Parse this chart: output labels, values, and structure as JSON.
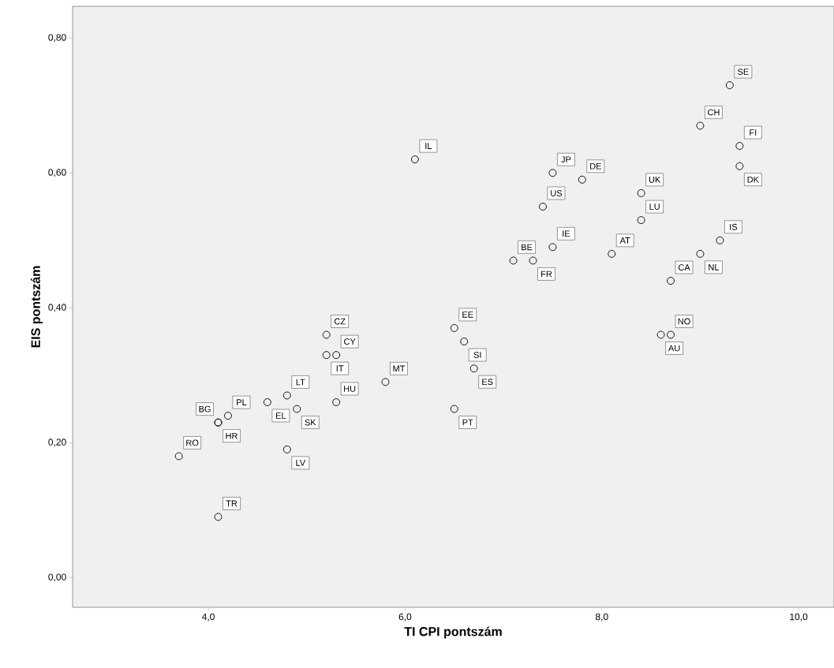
{
  "chart_data": {
    "type": "scatter",
    "xlabel": "TI CPI pontszám",
    "ylabel": "EIS pontszám",
    "x": [
      9.3,
      9.0,
      9.4,
      9.4,
      6.1,
      7.5,
      7.8,
      7.4,
      8.4,
      8.4,
      9.2,
      7.5,
      9.0,
      8.1,
      7.1,
      7.3,
      8.7,
      8.7,
      8.6,
      5.2,
      6.5,
      6.6,
      5.3,
      5.2,
      6.7,
      5.8,
      4.8,
      4.6,
      5.3,
      4.9,
      6.5,
      4.2,
      4.1,
      4.1,
      4.8,
      3.7,
      4.1
    ],
    "values": [
      0.73,
      0.67,
      0.64,
      0.61,
      0.62,
      0.6,
      0.59,
      0.55,
      0.57,
      0.53,
      0.5,
      0.49,
      0.48,
      0.48,
      0.47,
      0.47,
      0.44,
      0.36,
      0.36,
      0.36,
      0.37,
      0.35,
      0.33,
      0.33,
      0.31,
      0.29,
      0.27,
      0.26,
      0.26,
      0.25,
      0.25,
      0.24,
      0.23,
      0.23,
      0.19,
      0.18,
      0.09
    ],
    "color": "#000000",
    "marker": "circle",
    "grid": false,
    "xlim": [
      2.62,
      10.36
    ],
    "ylim": [
      -0.044,
      0.847
    ],
    "xticks": [
      {
        "value": 4,
        "label": "4,0"
      },
      {
        "value": 6,
        "label": "6,0"
      },
      {
        "value": 8,
        "label": "8,0"
      },
      {
        "value": 10,
        "label": "10,0"
      }
    ],
    "yticks": [
      {
        "value": 0,
        "label": "0,00"
      },
      {
        "value": 0.2,
        "label": "0,20"
      },
      {
        "value": 0.4,
        "label": "0,40"
      },
      {
        "value": 0.6,
        "label": "0,60"
      },
      {
        "value": 0.8,
        "label": "0,80"
      }
    ],
    "annotations": [
      {
        "text": "SE",
        "x": 9.3,
        "y": 0.73
      },
      {
        "text": "CH",
        "x": 9.0,
        "y": 0.67
      },
      {
        "text": "FI",
        "x": 9.4,
        "y": 0.64
      },
      {
        "text": "DK",
        "x": 9.4,
        "y": 0.61
      },
      {
        "text": "IL",
        "x": 6.1,
        "y": 0.62
      },
      {
        "text": "JP",
        "x": 7.5,
        "y": 0.6
      },
      {
        "text": "DE",
        "x": 7.8,
        "y": 0.59
      },
      {
        "text": "US",
        "x": 7.4,
        "y": 0.55
      },
      {
        "text": "UK",
        "x": 8.4,
        "y": 0.57
      },
      {
        "text": "LU",
        "x": 8.4,
        "y": 0.53
      },
      {
        "text": "IS",
        "x": 9.2,
        "y": 0.5
      },
      {
        "text": "IE",
        "x": 7.5,
        "y": 0.49
      },
      {
        "text": "NL",
        "x": 9.0,
        "y": 0.48
      },
      {
        "text": "AT",
        "x": 8.1,
        "y": 0.48
      },
      {
        "text": "BE",
        "x": 7.1,
        "y": 0.47
      },
      {
        "text": "FR",
        "x": 7.3,
        "y": 0.47
      },
      {
        "text": "CA",
        "x": 8.7,
        "y": 0.44
      },
      {
        "text": "NO",
        "x": 8.7,
        "y": 0.36
      },
      {
        "text": "AU",
        "x": 8.6,
        "y": 0.36
      },
      {
        "text": "CZ",
        "x": 5.2,
        "y": 0.36
      },
      {
        "text": "EE",
        "x": 6.5,
        "y": 0.37
      },
      {
        "text": "SI",
        "x": 6.6,
        "y": 0.35
      },
      {
        "text": "CY",
        "x": 5.3,
        "y": 0.33
      },
      {
        "text": "IT",
        "x": 5.2,
        "y": 0.33
      },
      {
        "text": "ES",
        "x": 6.7,
        "y": 0.31
      },
      {
        "text": "MT",
        "x": 5.8,
        "y": 0.29
      },
      {
        "text": "LT",
        "x": 4.8,
        "y": 0.27
      },
      {
        "text": "EL",
        "x": 4.6,
        "y": 0.26
      },
      {
        "text": "HU",
        "x": 5.3,
        "y": 0.26
      },
      {
        "text": "SK",
        "x": 4.9,
        "y": 0.25
      },
      {
        "text": "PT",
        "x": 6.5,
        "y": 0.25
      },
      {
        "text": "PL",
        "x": 4.2,
        "y": 0.24
      },
      {
        "text": "HR",
        "x": 4.1,
        "y": 0.23
      },
      {
        "text": "BG",
        "x": 4.1,
        "y": 0.23
      },
      {
        "text": "LV",
        "x": 4.8,
        "y": 0.19
      },
      {
        "text": "RO",
        "x": 3.7,
        "y": 0.18
      },
      {
        "text": "TR",
        "x": 4.1,
        "y": 0.09
      }
    ]
  }
}
